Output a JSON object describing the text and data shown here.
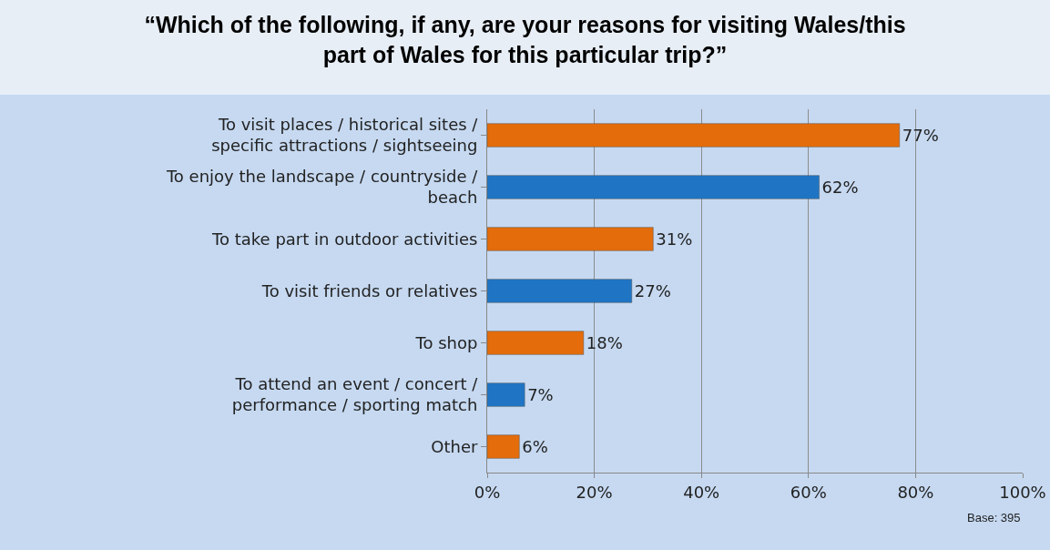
{
  "chart_data": {
    "type": "bar",
    "orientation": "horizontal",
    "title": "“Which of the following, if any, are your reasons for visiting Wales/this part of Wales for this particular trip?”",
    "categories": [
      "To visit places / historical sites / specific attractions / sightseeing",
      "To enjoy the landscape / countryside / beach",
      "To take part in outdoor activities",
      "To visit friends or relatives",
      "To shop",
      "To attend an event / concert / performance / sporting match",
      "Other"
    ],
    "values": [
      77,
      62,
      31,
      27,
      18,
      7,
      6
    ],
    "colors": [
      "#e46c0a",
      "#1f75c4",
      "#e46c0a",
      "#1f75c4",
      "#e46c0a",
      "#1f75c4",
      "#e46c0a"
    ],
    "value_labels": [
      "77%",
      "62%",
      "31%",
      "27%",
      "18%",
      "7%",
      "6%"
    ],
    "xlim": [
      0,
      100
    ],
    "xticks": [
      {
        "value": 0,
        "label": "0%"
      },
      {
        "value": 20,
        "label": "20%"
      },
      {
        "value": 40,
        "label": "40%"
      },
      {
        "value": 60,
        "label": "60%"
      },
      {
        "value": 80,
        "label": "80%"
      },
      {
        "value": 100,
        "label": "100%"
      }
    ],
    "grid": "x",
    "annotations": [
      "Base: 395"
    ]
  }
}
